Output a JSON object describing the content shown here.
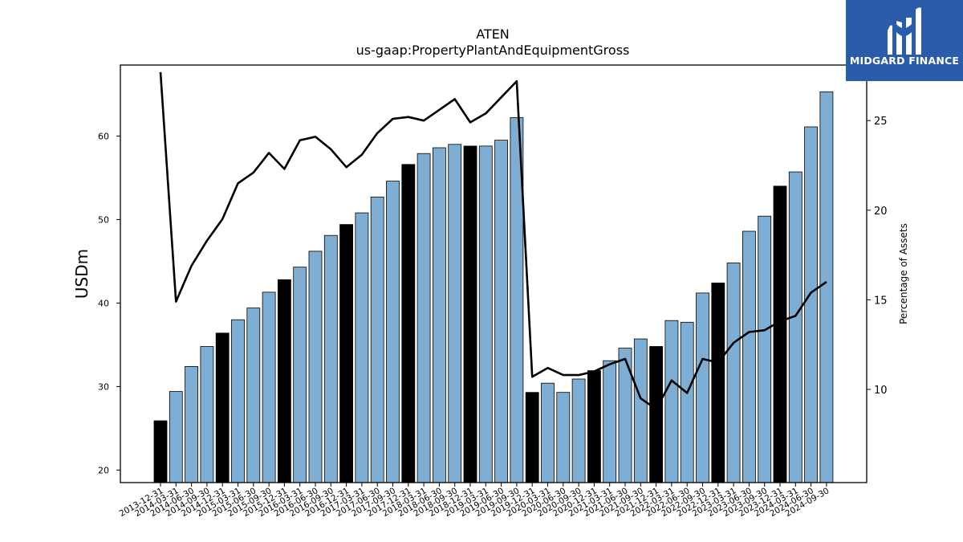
{
  "brand": {
    "name": "MIDGARD FINANCE",
    "background": "#2a5caa"
  },
  "chart_data": {
    "type": "bar",
    "title": "ATEN",
    "subtitle": "us-gaap:PropertyPlantAndEquipmentGross",
    "ylabel": "USDm",
    "y2label": "Percentage of Assets",
    "ylim": [
      18.5,
      68.5
    ],
    "y2lim": [
      4.8,
      28.1
    ],
    "yticks": [
      20,
      30,
      40,
      50,
      60
    ],
    "y2ticks": [
      10,
      15,
      20,
      25
    ],
    "bar_color": "#7eaed3",
    "highlight_color": "#000000",
    "line_color": "#000000",
    "categories": [
      "2013-12-31",
      "2014-03-31",
      "2014-06-30",
      "2014-09-30",
      "2014-12-31",
      "2015-03-31",
      "2015-06-30",
      "2015-09-30",
      "2015-12-31",
      "2016-03-31",
      "2016-06-30",
      "2016-09-30",
      "2016-12-31",
      "2017-03-31",
      "2017-06-30",
      "2017-09-30",
      "2017-12-31",
      "2018-03-31",
      "2018-06-30",
      "2018-09-30",
      "2018-12-31",
      "2019-03-31",
      "2019-06-30",
      "2019-09-30",
      "2019-12-31",
      "2020-03-31",
      "2020-06-30",
      "2020-09-30",
      "2020-12-31",
      "2021-03-31",
      "2021-06-30",
      "2021-09-30",
      "2021-12-31",
      "2022-03-31",
      "2022-06-30",
      "2022-09-30",
      "2022-12-31",
      "2023-03-31",
      "2023-06-30",
      "2023-09-30",
      "2023-12-31",
      "2024-03-31",
      "2024-06-30",
      "2024-09-30"
    ],
    "series": [
      {
        "name": "",
        "kind": "bar",
        "axis": "left",
        "values": [
          25.9,
          29.4,
          32.4,
          34.8,
          36.4,
          38.0,
          39.4,
          41.3,
          42.8,
          44.3,
          46.2,
          48.1,
          49.4,
          50.8,
          52.7,
          54.6,
          56.6,
          57.9,
          58.6,
          59.0,
          58.8,
          58.8,
          59.5,
          62.2,
          29.3,
          30.4,
          29.3,
          30.9,
          31.9,
          33.1,
          34.6,
          35.7,
          34.8,
          37.9,
          37.7,
          41.2,
          42.4,
          44.8,
          48.6,
          50.4,
          54.0,
          55.7,
          61.1,
          65.3
        ],
        "highlight": [
          true,
          false,
          false,
          false,
          true,
          false,
          false,
          false,
          true,
          false,
          false,
          false,
          true,
          false,
          false,
          false,
          true,
          false,
          false,
          false,
          true,
          false,
          false,
          false,
          true,
          false,
          false,
          false,
          true,
          false,
          false,
          false,
          true,
          false,
          false,
          false,
          true,
          false,
          false,
          false,
          true,
          false,
          false,
          false
        ]
      },
      {
        "name": "",
        "kind": "line",
        "axis": "right",
        "values": [
          27.7,
          14.9,
          16.9,
          18.3,
          19.5,
          21.5,
          22.1,
          23.2,
          22.3,
          23.9,
          24.1,
          23.4,
          22.4,
          23.1,
          24.3,
          25.1,
          25.2,
          25.0,
          25.6,
          26.2,
          24.9,
          25.4,
          26.3,
          27.2,
          10.7,
          11.2,
          10.8,
          10.8,
          11.0,
          11.4,
          11.7,
          9.5,
          8.9,
          10.5,
          9.8,
          11.7,
          11.5,
          12.6,
          13.2,
          13.3,
          13.8,
          14.1,
          15.4,
          16.0
        ]
      }
    ]
  }
}
